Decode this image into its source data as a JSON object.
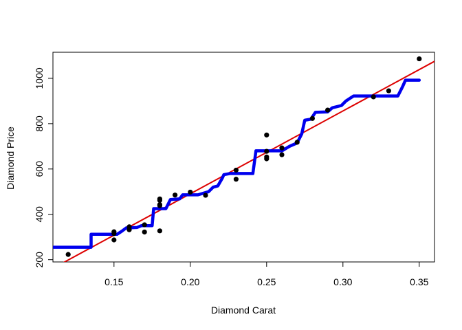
{
  "chart_data": {
    "type": "scatter",
    "title": "",
    "xlabel": "Diamond Carat",
    "ylabel": "Diamond Price",
    "xlim": [
      0.11,
      0.36
    ],
    "ylim": [
      190,
      1115
    ],
    "xticks": [
      0.15,
      0.2,
      0.25,
      0.3,
      0.35
    ],
    "xtick_labels": [
      "0.15",
      "0.20",
      "0.25",
      "0.30",
      "0.35"
    ],
    "yticks": [
      200,
      400,
      600,
      800,
      1000
    ],
    "ytick_labels": [
      "200",
      "400",
      "600",
      "800",
      "1000"
    ],
    "grid": false,
    "colors": {
      "points": "#000000",
      "fit_line": "#dd0000",
      "step_line": "#0000ee"
    },
    "points": [
      [
        0.12,
        223
      ],
      [
        0.15,
        287
      ],
      [
        0.15,
        315
      ],
      [
        0.15,
        323
      ],
      [
        0.16,
        332
      ],
      [
        0.16,
        345
      ],
      [
        0.17,
        322
      ],
      [
        0.17,
        354
      ],
      [
        0.18,
        327
      ],
      [
        0.18,
        438
      ],
      [
        0.18,
        443
      ],
      [
        0.18,
        462
      ],
      [
        0.18,
        468
      ],
      [
        0.19,
        485
      ],
      [
        0.2,
        498
      ],
      [
        0.21,
        484
      ],
      [
        0.23,
        555
      ],
      [
        0.23,
        595
      ],
      [
        0.25,
        645
      ],
      [
        0.25,
        653
      ],
      [
        0.25,
        678
      ],
      [
        0.25,
        750
      ],
      [
        0.26,
        663
      ],
      [
        0.26,
        693
      ],
      [
        0.27,
        718
      ],
      [
        0.28,
        823
      ],
      [
        0.29,
        860
      ],
      [
        0.32,
        918
      ],
      [
        0.33,
        945
      ],
      [
        0.35,
        1086
      ]
    ],
    "fit_line": [
      [
        0.11,
        162
      ],
      [
        0.36,
        1075
      ]
    ],
    "step_line": [
      [
        0.11,
        255
      ],
      [
        0.135,
        255
      ],
      [
        0.135,
        312
      ],
      [
        0.152,
        312
      ],
      [
        0.155,
        325
      ],
      [
        0.158,
        340
      ],
      [
        0.165,
        342
      ],
      [
        0.168,
        350
      ],
      [
        0.175,
        350
      ],
      [
        0.176,
        425
      ],
      [
        0.184,
        425
      ],
      [
        0.187,
        465
      ],
      [
        0.193,
        468
      ],
      [
        0.195,
        486
      ],
      [
        0.205,
        486
      ],
      [
        0.212,
        500
      ],
      [
        0.215,
        520
      ],
      [
        0.218,
        525
      ],
      [
        0.221,
        560
      ],
      [
        0.222,
        575
      ],
      [
        0.226,
        580
      ],
      [
        0.241,
        580
      ],
      [
        0.243,
        680
      ],
      [
        0.26,
        680
      ],
      [
        0.265,
        700
      ],
      [
        0.27,
        715
      ],
      [
        0.273,
        755
      ],
      [
        0.275,
        815
      ],
      [
        0.279,
        820
      ],
      [
        0.282,
        850
      ],
      [
        0.29,
        852
      ],
      [
        0.293,
        870
      ],
      [
        0.299,
        880
      ],
      [
        0.302,
        900
      ],
      [
        0.307,
        922
      ],
      [
        0.336,
        922
      ],
      [
        0.339,
        962
      ],
      [
        0.341,
        992
      ],
      [
        0.35,
        992
      ]
    ]
  }
}
